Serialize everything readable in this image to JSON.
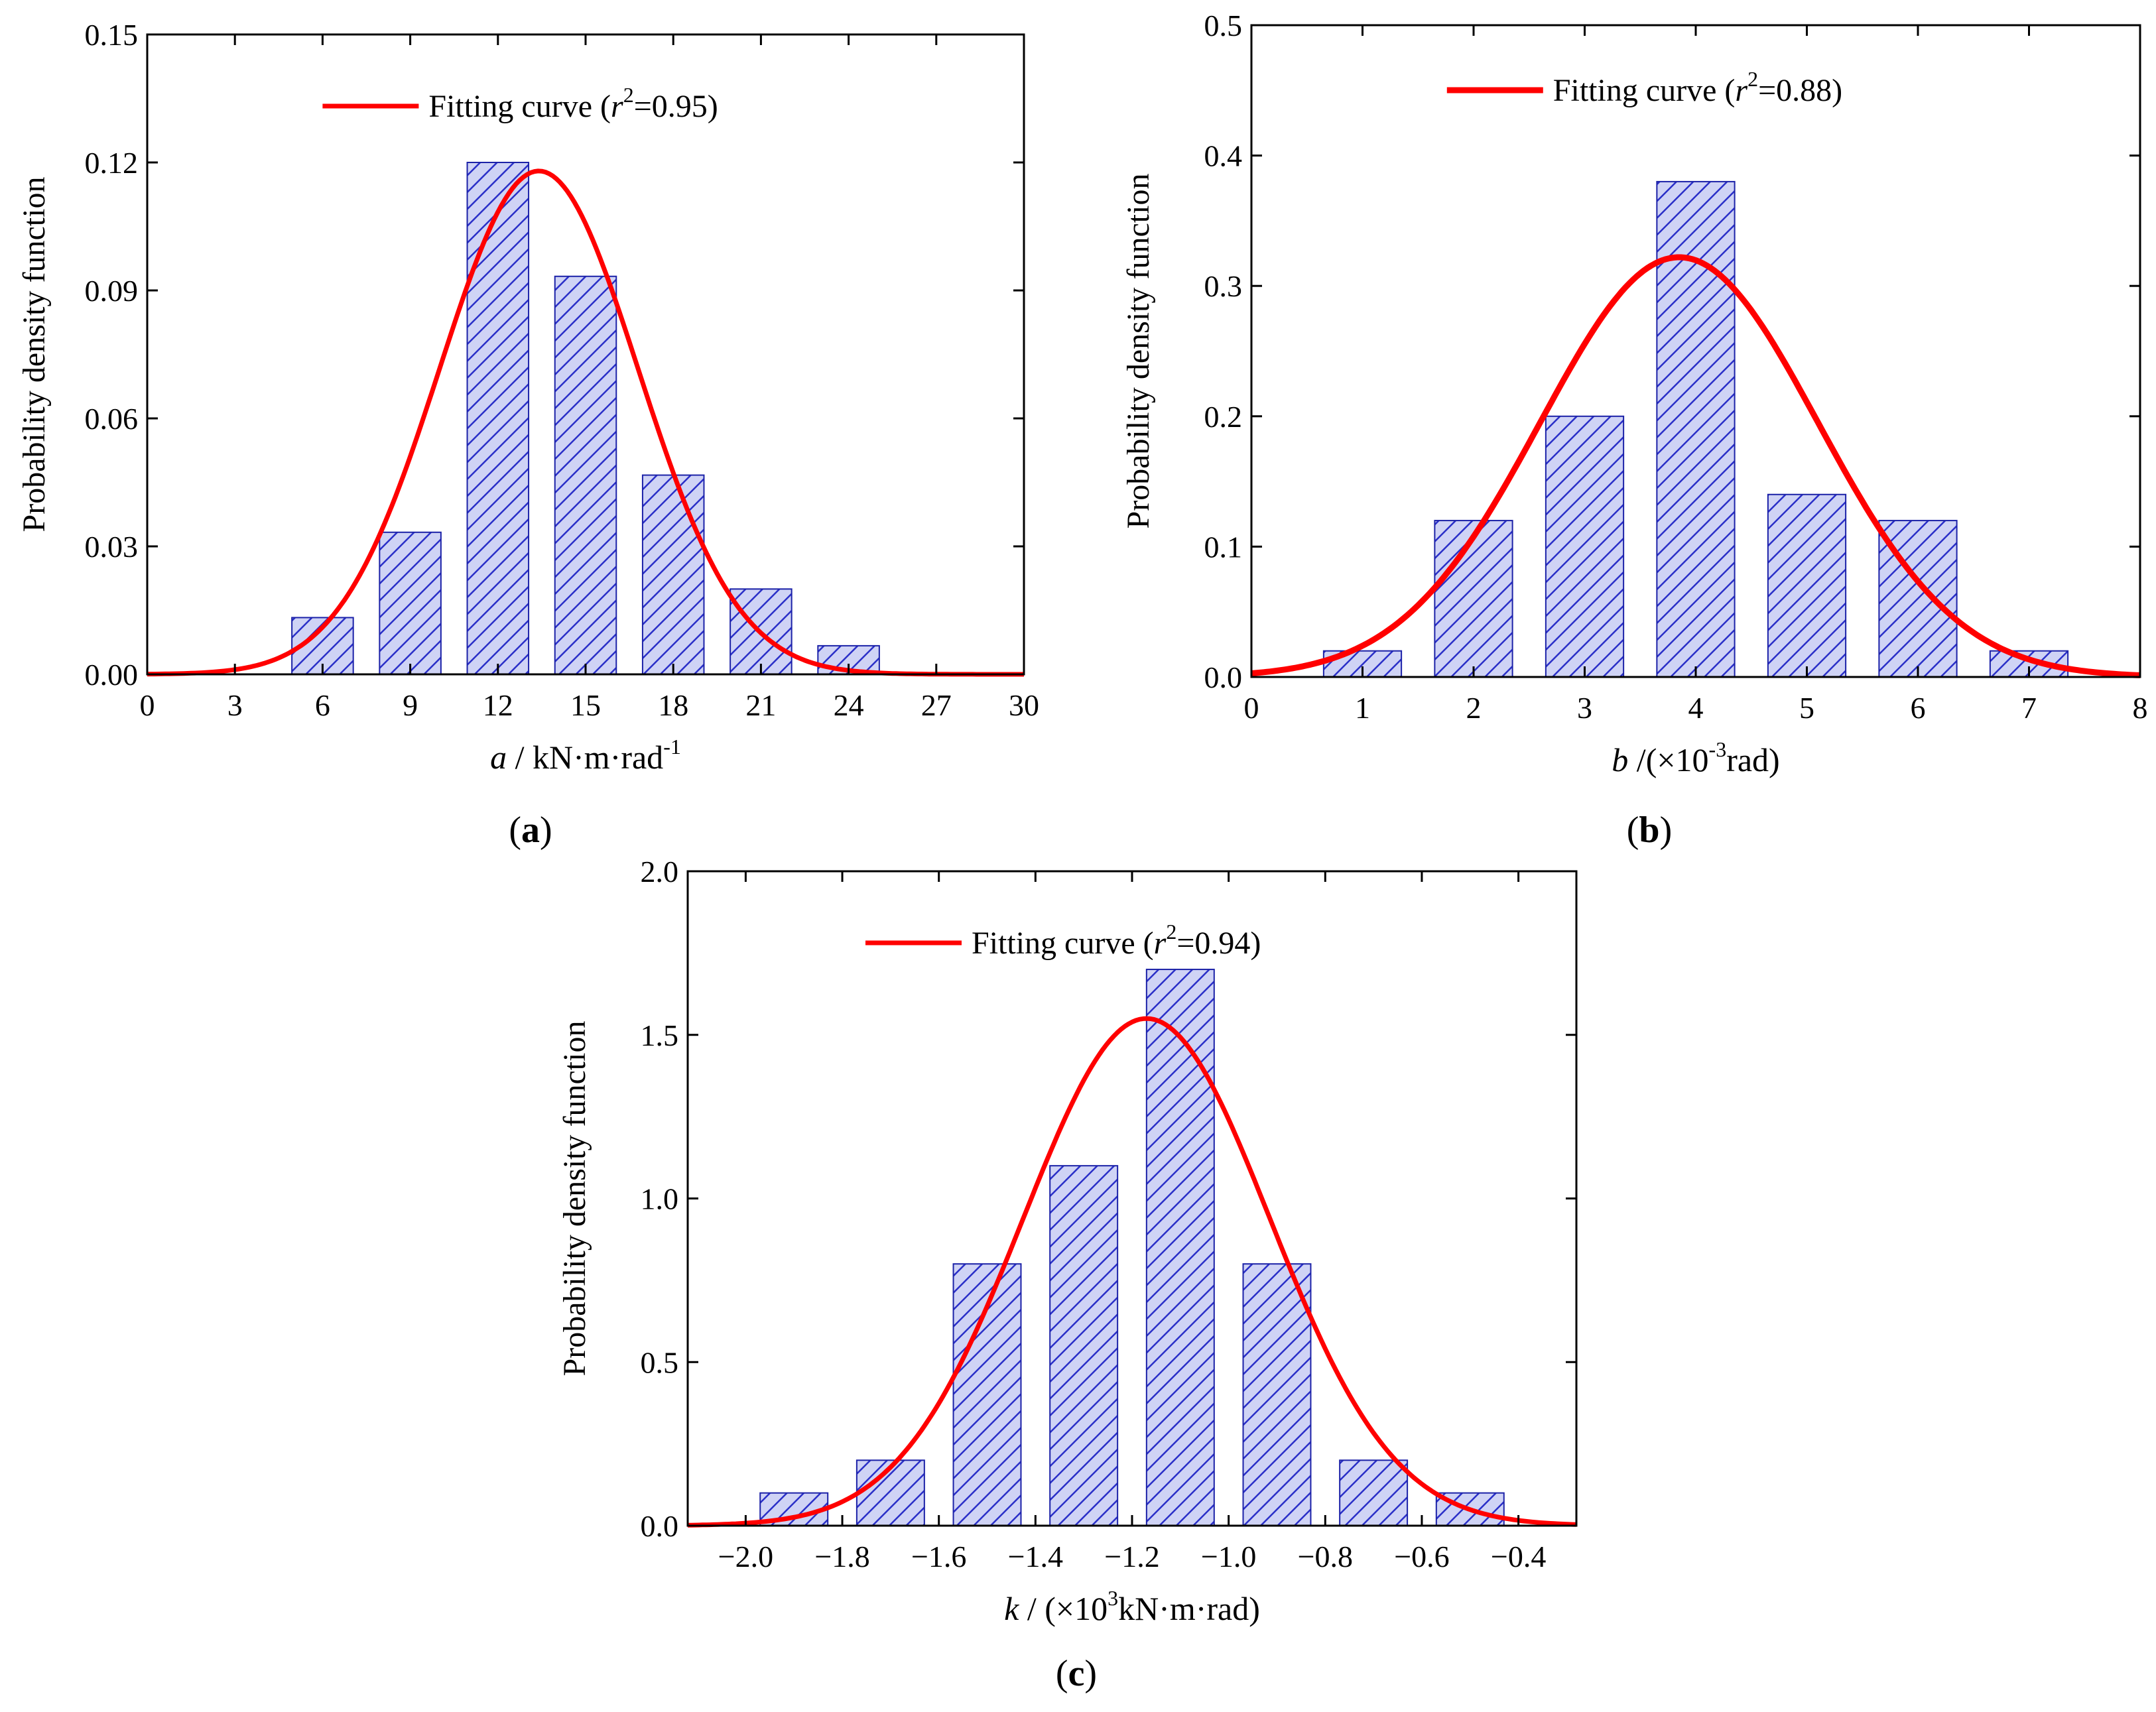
{
  "colors": {
    "bar_fill": "#cfd3f5",
    "bar_hatch": "#2a2fc8",
    "bar_edge": "#1c22a8",
    "curve": "#ff0000",
    "axis": "#000000"
  },
  "chart_data": [
    {
      "id": "a",
      "type": "bar",
      "panel_label": "a",
      "ylabel": "Probability density function",
      "xlabel": {
        "var": "a",
        "text": " / kN·m·rad",
        "sup": "-1"
      },
      "legend": {
        "pre": "Fitting curve (",
        "var": "r",
        "sup": "2",
        "post": "=0.95)",
        "position": "top-center"
      },
      "xlim": [
        0,
        30
      ],
      "ylim": [
        0,
        0.15
      ],
      "xticks": [
        0,
        3,
        6,
        9,
        12,
        15,
        18,
        21,
        24,
        27,
        30
      ],
      "yticks": [
        0,
        0.03,
        0.06,
        0.09,
        0.12,
        0.15
      ],
      "xtick_labels": [
        "0",
        "3",
        "6",
        "9",
        "12",
        "15",
        "18",
        "21",
        "24",
        "27",
        "30"
      ],
      "ytick_labels": [
        "0.00",
        "0.03",
        "0.06",
        "0.09",
        "0.12",
        "0.15"
      ],
      "bar_width": 2.1,
      "bars": [
        {
          "x": 6,
          "y": 0.0133
        },
        {
          "x": 9,
          "y": 0.0333
        },
        {
          "x": 12,
          "y": 0.12
        },
        {
          "x": 15,
          "y": 0.0933
        },
        {
          "x": 18,
          "y": 0.0467
        },
        {
          "x": 21,
          "y": 0.02
        },
        {
          "x": 24,
          "y": 0.0067
        }
      ],
      "fit": {
        "type": "normal",
        "mean": 13.4,
        "sd": 3.4,
        "peak": 0.118
      }
    },
    {
      "id": "b",
      "type": "bar",
      "panel_label": "b",
      "ylabel": "Probability density function",
      "xlabel": {
        "var": "b",
        "text": " /(×10",
        "sup": "-3",
        "post": "rad)"
      },
      "legend": {
        "pre": "Fitting curve (",
        "var": "r",
        "sup": "2",
        "post": "=0.88)",
        "position": "top-center"
      },
      "xlim": [
        0,
        8
      ],
      "ylim": [
        0,
        0.5
      ],
      "xticks": [
        0,
        1,
        2,
        3,
        4,
        5,
        6,
        7,
        8
      ],
      "yticks": [
        0,
        0.1,
        0.2,
        0.3,
        0.4,
        0.5
      ],
      "xtick_labels": [
        "0",
        "1",
        "2",
        "3",
        "4",
        "5",
        "6",
        "7",
        "8"
      ],
      "ytick_labels": [
        "0.0",
        "0.1",
        "0.2",
        "0.3",
        "0.4",
        "0.5"
      ],
      "bar_width": 0.7,
      "bars": [
        {
          "x": 1,
          "y": 0.02
        },
        {
          "x": 2,
          "y": 0.12
        },
        {
          "x": 3,
          "y": 0.2
        },
        {
          "x": 4,
          "y": 0.38
        },
        {
          "x": 5,
          "y": 0.14
        },
        {
          "x": 6,
          "y": 0.12
        },
        {
          "x": 7,
          "y": 0.02
        }
      ],
      "fit": {
        "type": "normal",
        "mean": 3.85,
        "sd": 1.25,
        "peak": 0.322
      }
    },
    {
      "id": "c",
      "type": "bar",
      "panel_label": "c",
      "ylabel": "Probability density function",
      "xlabel": {
        "var": "k",
        "text": " / (×10",
        "sup": "3",
        "post": "kN·m·rad)"
      },
      "legend": {
        "pre": "Fitting curve (",
        "var": "r",
        "sup": "2",
        "post": "=0.94)",
        "position": "top-center"
      },
      "xlim": [
        -2.12,
        -0.28
      ],
      "ylim": [
        0,
        2.0
      ],
      "xticks": [
        -2.0,
        -1.8,
        -1.6,
        -1.4,
        -1.2,
        -1.0,
        -0.8,
        -0.6,
        -0.4
      ],
      "yticks": [
        0,
        0.5,
        1.0,
        1.5,
        2.0
      ],
      "xtick_labels": [
        "−2.0",
        "−1.8",
        "−1.6",
        "−1.4",
        "−1.2",
        "−1.0",
        "−0.8",
        "−0.6",
        "−0.4"
      ],
      "ytick_labels": [
        "0.0",
        "0.5",
        "1.0",
        "1.5",
        "2.0"
      ],
      "bar_width": 0.14,
      "bars": [
        {
          "x": -1.9,
          "y": 0.1
        },
        {
          "x": -1.7,
          "y": 0.2
        },
        {
          "x": -1.5,
          "y": 0.8
        },
        {
          "x": -1.3,
          "y": 1.1
        },
        {
          "x": -1.1,
          "y": 1.7
        },
        {
          "x": -0.9,
          "y": 0.8
        },
        {
          "x": -0.7,
          "y": 0.2
        },
        {
          "x": -0.5,
          "y": 0.1
        }
      ],
      "fit": {
        "type": "normal",
        "mean": -1.17,
        "sd": 0.255,
        "peak": 1.55
      }
    }
  ]
}
